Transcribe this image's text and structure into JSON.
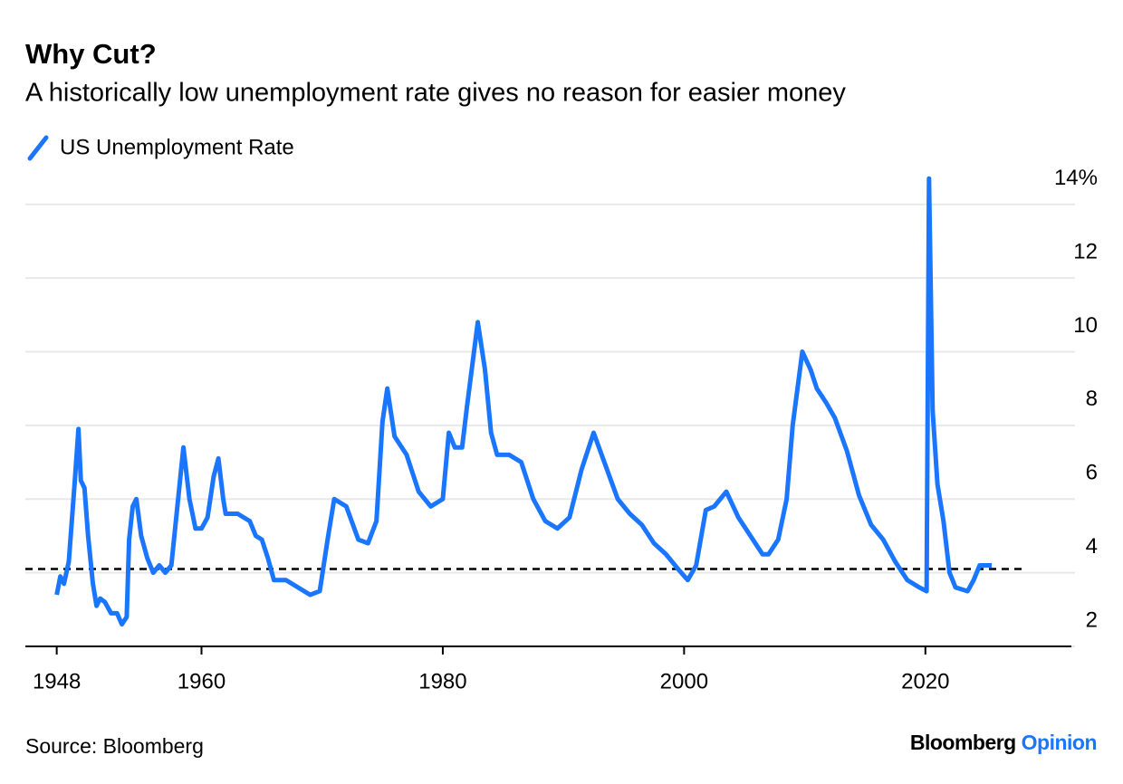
{
  "chart_data": {
    "type": "line",
    "title": "Why Cut?",
    "subtitle": "A historically low unemployment rate gives no reason for easier money",
    "x": [
      1948.0,
      1948.3,
      1948.6,
      1949.0,
      1949.5,
      1949.8,
      1950.0,
      1950.3,
      1950.6,
      1951.0,
      1951.3,
      1951.6,
      1952.0,
      1952.5,
      1953.0,
      1953.4,
      1953.8,
      1954.0,
      1954.3,
      1954.6,
      1955.0,
      1955.5,
      1956.0,
      1956.5,
      1957.0,
      1957.5,
      1958.0,
      1958.5,
      1959.0,
      1959.5,
      1960.0,
      1960.5,
      1961.0,
      1961.4,
      1961.8,
      1962.0,
      1963.0,
      1964.0,
      1964.5,
      1965.0,
      1965.5,
      1966.0,
      1967.0,
      1968.0,
      1969.0,
      1969.8,
      1970.5,
      1971.0,
      1972.0,
      1973.0,
      1973.8,
      1974.5,
      1975.0,
      1975.4,
      1976.0,
      1977.0,
      1978.0,
      1979.0,
      1980.0,
      1980.5,
      1981.0,
      1981.6,
      1982.0,
      1982.9,
      1983.5,
      1984.0,
      1984.5,
      1985.5,
      1986.5,
      1987.5,
      1988.5,
      1989.5,
      1990.5,
      1991.5,
      1992.5,
      1993.5,
      1994.5,
      1995.5,
      1996.5,
      1997.5,
      1998.5,
      1999.5,
      2000.3,
      2001.0,
      2001.8,
      2002.5,
      2003.5,
      2004.5,
      2005.5,
      2006.5,
      2007.0,
      2007.8,
      2008.5,
      2009.0,
      2009.8,
      2010.5,
      2011.0,
      2011.8,
      2012.5,
      2013.5,
      2014.5,
      2015.5,
      2016.5,
      2017.5,
      2018.5,
      2019.5,
      2020.1,
      2020.3,
      2020.6,
      2021.0,
      2021.5,
      2022.0,
      2022.5,
      2023.5,
      2024.0,
      2024.5,
      2025.5
    ],
    "series": [
      {
        "name": "US Unemployment Rate",
        "color": "#1a75ff",
        "values": [
          3.4,
          3.9,
          3.7,
          4.3,
          6.5,
          7.9,
          6.5,
          6.3,
          5.0,
          3.7,
          3.1,
          3.3,
          3.2,
          2.9,
          2.9,
          2.6,
          2.8,
          4.9,
          5.8,
          6.0,
          5.0,
          4.4,
          4.0,
          4.2,
          4.0,
          4.2,
          5.8,
          7.4,
          6.0,
          5.2,
          5.2,
          5.5,
          6.6,
          7.1,
          6.0,
          5.6,
          5.6,
          5.4,
          5.0,
          4.9,
          4.4,
          3.8,
          3.8,
          3.6,
          3.4,
          3.5,
          5.0,
          6.0,
          5.8,
          4.9,
          4.8,
          5.4,
          8.1,
          9.0,
          7.7,
          7.2,
          6.2,
          5.8,
          6.0,
          7.8,
          7.4,
          7.4,
          8.5,
          10.8,
          9.5,
          7.8,
          7.2,
          7.2,
          7.0,
          6.0,
          5.4,
          5.2,
          5.5,
          6.8,
          7.8,
          6.9,
          6.0,
          5.6,
          5.3,
          4.8,
          4.5,
          4.1,
          3.8,
          4.2,
          5.7,
          5.8,
          6.2,
          5.5,
          5.0,
          4.5,
          4.5,
          4.9,
          6.0,
          8.0,
          10.0,
          9.5,
          9.0,
          8.6,
          8.2,
          7.3,
          6.1,
          5.3,
          4.9,
          4.3,
          3.8,
          3.6,
          3.5,
          14.7,
          8.4,
          6.4,
          5.4,
          4.0,
          3.6,
          3.5,
          3.8,
          4.2,
          4.2
        ]
      }
    ],
    "reference_line": 4.1,
    "xlim": [
      1945.4,
      2032.1
    ],
    "xticks": [
      1948,
      1960,
      1980,
      2000,
      2020
    ],
    "ylim": [
      2,
      15
    ],
    "yticks": [
      2,
      4,
      6,
      8,
      10,
      12,
      {
        "value": 14,
        "label": "14%"
      }
    ],
    "grid": true,
    "source": "Source: Bloomberg",
    "brand": {
      "name": "Bloomberg",
      "section": "Opinion"
    }
  }
}
